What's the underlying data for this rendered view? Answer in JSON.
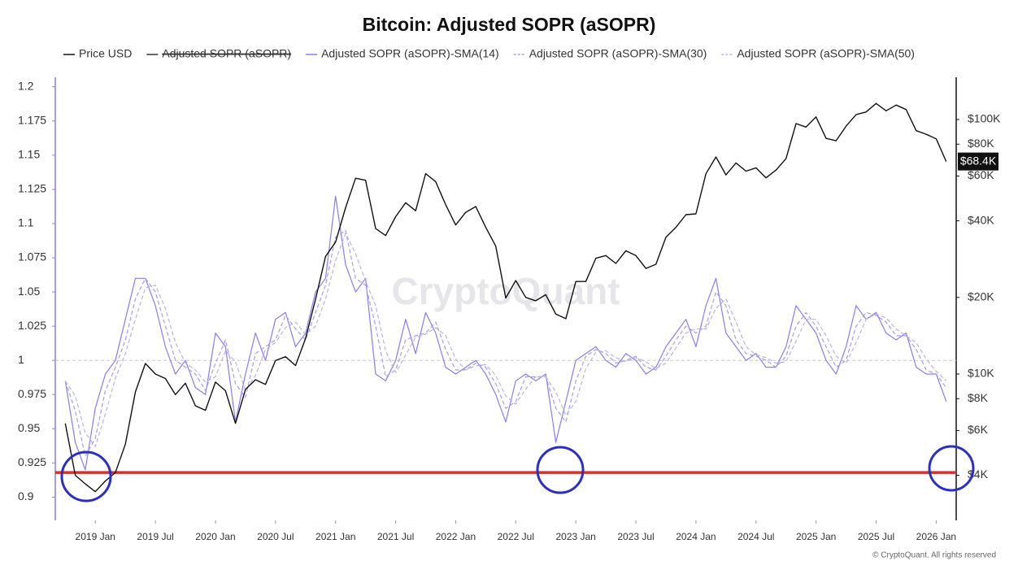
{
  "chart_data": {
    "type": "line",
    "title": "Bitcoin: Adjusted SOPR (aSOPR)",
    "watermark": "CryptoQuant",
    "footer": "© CryptoQuant. All rights reserved",
    "x": [
      "2018-10",
      "2018-11",
      "2018-12",
      "2019-01",
      "2019-02",
      "2019-03",
      "2019-04",
      "2019-05",
      "2019-06",
      "2019-07",
      "2019-08",
      "2019-09",
      "2019-10",
      "2019-11",
      "2019-12",
      "2020-01",
      "2020-02",
      "2020-03",
      "2020-04",
      "2020-05",
      "2020-06",
      "2020-07",
      "2020-08",
      "2020-09",
      "2020-10",
      "2020-11",
      "2020-12",
      "2021-01",
      "2021-02",
      "2021-03",
      "2021-04",
      "2021-05",
      "2021-06",
      "2021-07",
      "2021-08",
      "2021-09",
      "2021-10",
      "2021-11",
      "2021-12",
      "2022-01",
      "2022-02",
      "2022-03",
      "2022-04",
      "2022-05",
      "2022-06",
      "2022-07",
      "2022-08",
      "2022-09",
      "2022-10",
      "2022-11",
      "2022-12",
      "2023-01",
      "2023-02",
      "2023-03",
      "2023-04",
      "2023-05",
      "2023-06",
      "2023-07",
      "2023-08",
      "2023-09",
      "2023-10",
      "2023-11",
      "2023-12",
      "2024-01",
      "2024-02",
      "2024-03",
      "2024-04",
      "2024-05",
      "2024-06",
      "2024-07",
      "2024-08",
      "2024-09",
      "2024-10",
      "2024-11",
      "2024-12",
      "2025-01",
      "2025-02",
      "2025-03",
      "2025-04",
      "2025-05",
      "2025-06",
      "2025-07",
      "2025-08",
      "2025-09",
      "2025-10",
      "2025-11",
      "2025-12",
      "2026-01",
      "2026-02"
    ],
    "xlim": [
      "2018-09",
      "2026-03"
    ],
    "xticks": [
      {
        "value": "2019-01",
        "label": "2019 Jan"
      },
      {
        "value": "2019-07",
        "label": "2019 Jul"
      },
      {
        "value": "2020-01",
        "label": "2020 Jan"
      },
      {
        "value": "2020-07",
        "label": "2020 Jul"
      },
      {
        "value": "2021-01",
        "label": "2021 Jan"
      },
      {
        "value": "2021-07",
        "label": "2021 Jul"
      },
      {
        "value": "2022-01",
        "label": "2022 Jan"
      },
      {
        "value": "2022-07",
        "label": "2022 Jul"
      },
      {
        "value": "2023-01",
        "label": "2023 Jan"
      },
      {
        "value": "2023-07",
        "label": "2023 Jul"
      },
      {
        "value": "2024-01",
        "label": "2024 Jan"
      },
      {
        "value": "2024-07",
        "label": "2024 Jul"
      },
      {
        "value": "2025-01",
        "label": "2025 Jan"
      },
      {
        "value": "2025-07",
        "label": "2025 Jul"
      },
      {
        "value": "2026-01",
        "label": "2026 Jan"
      }
    ],
    "ylim": [
      0.883,
      1.207
    ],
    "yticks": [
      0.9,
      0.925,
      0.95,
      0.975,
      1,
      1.025,
      1.05,
      1.075,
      1.1,
      1.125,
      1.15,
      1.175,
      1.2
    ],
    "y2lim": [
      2660,
      146600
    ],
    "y2scale": "log",
    "y2ticks": [
      {
        "value": 4000,
        "label": "$4K"
      },
      {
        "value": 6000,
        "label": "$6K"
      },
      {
        "value": 8000,
        "label": "$8K"
      },
      {
        "value": 10000,
        "label": "$10K"
      },
      {
        "value": 20000,
        "label": "$20K"
      },
      {
        "value": 40000,
        "label": "$40K"
      },
      {
        "value": 60000,
        "label": "$60K"
      },
      {
        "value": 80000,
        "label": "$80K"
      },
      {
        "value": 100000,
        "label": "$100K"
      }
    ],
    "grid": false,
    "legend": "top",
    "reference_lines": [
      {
        "value": 1,
        "color": "#c8c8c8",
        "dashed": true
      },
      {
        "value": 0.918,
        "color": "#d9302c",
        "dashed": false
      }
    ],
    "annotations": [
      {
        "value": 68400,
        "label": "$68.4K"
      }
    ],
    "series": [
      {
        "name": "Price USD",
        "color": "#111111",
        "axis": "y2",
        "dashed": false,
        "visible": true,
        "values": [
          6400,
          4000,
          3700,
          3450,
          3800,
          4100,
          5300,
          8500,
          11000,
          10000,
          9600,
          8300,
          9200,
          7500,
          7200,
          9300,
          8600,
          6400,
          8700,
          9500,
          9100,
          11300,
          11700,
          10800,
          13800,
          19700,
          29000,
          33000,
          45000,
          58800,
          57700,
          37300,
          35000,
          41500,
          47100,
          43800,
          61300,
          57000,
          46300,
          38500,
          43200,
          45500,
          37700,
          31800,
          19900,
          23300,
          20000,
          19400,
          20500,
          17200,
          16500,
          23100,
          23100,
          28500,
          29200,
          27200,
          30500,
          29200,
          26000,
          27000,
          34500,
          37700,
          42300,
          42600,
          61200,
          71300,
          60600,
          67500,
          62700,
          64600,
          59000,
          63300,
          70200,
          96400,
          93400,
          102400,
          84300,
          82500,
          94200,
          104600,
          107100,
          115700,
          108200,
          114000,
          109500,
          90400,
          87500,
          84000,
          68400
        ]
      },
      {
        "name": "Adjusted SOPR (aSOPR)",
        "color": "#333333",
        "visible": false
      },
      {
        "name": "Adjusted SOPR (aSOPR)-SMA(14)",
        "color": "#8a7cf0",
        "dashed": false,
        "visible": true,
        "values": [
          0.985,
          0.94,
          0.92,
          0.965,
          0.99,
          1.0,
          1.03,
          1.06,
          1.06,
          1.04,
          1.01,
          0.99,
          1.0,
          0.98,
          0.975,
          1.02,
          1.01,
          0.955,
          0.99,
          1.02,
          1.0,
          1.03,
          1.035,
          1.01,
          1.02,
          1.05,
          1.06,
          1.12,
          1.07,
          1.05,
          1.06,
          0.99,
          0.985,
          1.0,
          1.03,
          1.005,
          1.035,
          1.02,
          0.995,
          0.99,
          0.995,
          1.0,
          0.99,
          0.975,
          0.955,
          0.985,
          0.99,
          0.985,
          0.99,
          0.94,
          0.97,
          1.0,
          1.005,
          1.01,
          1.0,
          0.995,
          1.005,
          1.0,
          0.99,
          0.995,
          1.01,
          1.02,
          1.03,
          1.01,
          1.04,
          1.06,
          1.02,
          1.01,
          1.0,
          1.005,
          0.995,
          0.995,
          1.01,
          1.04,
          1.03,
          1.02,
          1.0,
          0.99,
          1.01,
          1.04,
          1.03,
          1.035,
          1.02,
          1.015,
          1.02,
          0.995,
          0.99,
          0.99,
          0.97
        ]
      },
      {
        "name": "Adjusted SOPR (aSOPR)-SMA(30)",
        "color": "#a59cf0",
        "dashed": true,
        "visible": true,
        "values": [
          0.985,
          0.963,
          0.93,
          0.943,
          0.978,
          0.995,
          1.015,
          1.045,
          1.06,
          1.05,
          1.025,
          1.0,
          0.995,
          0.99,
          0.978,
          0.998,
          1.015,
          0.983,
          0.973,
          1.005,
          1.01,
          1.015,
          1.033,
          1.023,
          1.015,
          1.035,
          1.055,
          1.09,
          1.095,
          1.06,
          1.055,
          1.025,
          0.988,
          0.993,
          1.015,
          1.018,
          1.02,
          1.028,
          1.008,
          0.993,
          0.993,
          0.998,
          0.995,
          0.983,
          0.965,
          0.97,
          0.988,
          0.988,
          0.988,
          0.965,
          0.955,
          0.985,
          1.003,
          1.008,
          1.005,
          0.998,
          1.0,
          1.003,
          0.995,
          0.993,
          1.003,
          1.015,
          1.025,
          1.02,
          1.025,
          1.05,
          1.04,
          1.015,
          1.005,
          1.003,
          1.0,
          0.995,
          1.003,
          1.025,
          1.035,
          1.025,
          1.01,
          0.995,
          1.0,
          1.025,
          1.035,
          1.033,
          1.028,
          1.018,
          1.018,
          1.008,
          0.993,
          0.99,
          0.98
        ]
      },
      {
        "name": "Adjusted SOPR (aSOPR)-SMA(50)",
        "color": "#b9b2ea",
        "dashed": true,
        "visible": true,
        "values": [
          0.985,
          0.974,
          0.947,
          0.937,
          0.961,
          0.987,
          1.005,
          1.03,
          1.053,
          1.055,
          1.038,
          1.013,
          0.998,
          0.993,
          0.984,
          0.988,
          1.007,
          0.999,
          0.978,
          0.989,
          1.008,
          1.013,
          1.024,
          1.028,
          1.019,
          1.025,
          1.045,
          1.073,
          1.093,
          1.078,
          1.058,
          1.04,
          1.007,
          0.991,
          1.004,
          1.017,
          1.019,
          1.024,
          1.018,
          1.001,
          0.993,
          0.996,
          0.997,
          0.989,
          0.974,
          0.968,
          0.979,
          0.988,
          0.988,
          0.977,
          0.96,
          0.97,
          0.994,
          1.006,
          1.007,
          1.002,
          0.999,
          1.002,
          0.999,
          0.994,
          0.998,
          1.009,
          1.02,
          1.023,
          1.023,
          1.038,
          1.045,
          1.028,
          1.01,
          1.004,
          1.002,
          0.998,
          0.999,
          1.014,
          1.03,
          1.03,
          1.018,
          1.003,
          0.998,
          1.013,
          1.03,
          1.034,
          1.031,
          1.023,
          1.018,
          1.013,
          1.001,
          0.992,
          0.985
        ]
      }
    ]
  }
}
